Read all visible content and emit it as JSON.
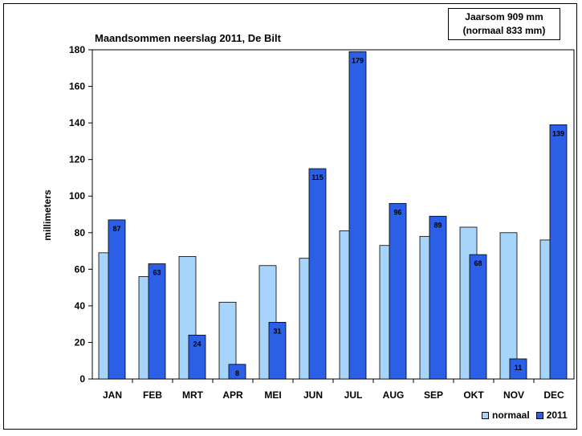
{
  "chart_data": {
    "type": "bar",
    "title": "Maandsommen neerslag 2011, De Bilt",
    "ylabel": "millimeters",
    "xlabel": "",
    "ylim": [
      0,
      180
    ],
    "yticks": [
      0,
      20,
      40,
      60,
      80,
      100,
      120,
      140,
      160,
      180
    ],
    "categories": [
      "JAN",
      "FEB",
      "MRT",
      "APR",
      "MEI",
      "JUN",
      "JUL",
      "AUG",
      "SEP",
      "OKT",
      "NOV",
      "DEC"
    ],
    "series": [
      {
        "name": "normaal",
        "color": "#a6d4fa",
        "values": [
          69,
          56,
          67,
          42,
          62,
          66,
          81,
          73,
          78,
          83,
          80,
          76
        ],
        "labels": []
      },
      {
        "name": "2011",
        "color": "#2a5fe6",
        "values": [
          87,
          63,
          24,
          8,
          31,
          115,
          179,
          96,
          89,
          68,
          11,
          139
        ],
        "labels": [
          "87",
          "63",
          "24",
          "8",
          "31",
          "115",
          "179",
          "96",
          "89",
          "68",
          "11",
          "139"
        ]
      }
    ],
    "legend": "bottom-right",
    "grid": false,
    "annotation": {
      "line1": "Jaarsom 909 mm",
      "line2": "(normaal  833 mm)"
    }
  }
}
